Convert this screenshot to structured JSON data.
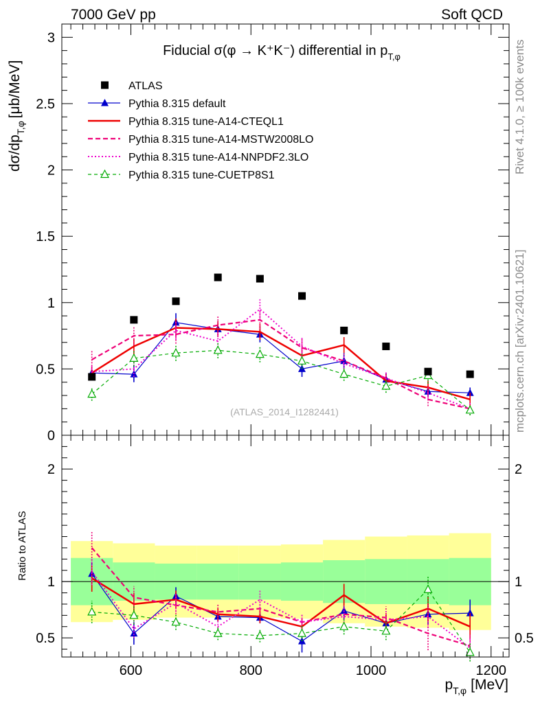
{
  "header": {
    "left": "7000 GeV pp",
    "right": "Soft QCD"
  },
  "side_labels": {
    "rivet": "Rivet 4.1.0, ≥ 100k events",
    "mcplots": "mcplots.cern.ch [arXiv:2401.10621]"
  },
  "chart_data": {
    "type": "line",
    "title_text": "Fiducial σ(φ → K⁺K⁻) differential in",
    "title_var": "p",
    "title_sub": "T,φ",
    "watermark": "(ATLAS_2014_I1282441)",
    "ylabel_main": "dσ/dp",
    "ylabel_sub": "T,φ",
    "ylabel_unit": "[μb/MeV]",
    "ylabel_ratio": "Ratio to ATLAS",
    "xlabel_main": "p",
    "xlabel_sub": "T,φ",
    "xlabel_unit": "[MeV]",
    "xlim": [
      485,
      1230
    ],
    "ylim_main": [
      0,
      3.1
    ],
    "ylim_ratio": [
      0.33,
      2.3
    ],
    "x_ticks": [
      600,
      800,
      1000,
      1200
    ],
    "y_ticks_main": [
      0,
      0.5,
      1,
      1.5,
      2,
      2.5,
      3
    ],
    "y_tick_labels_main": [
      "0",
      "0.5",
      "1",
      "1.5",
      "2",
      "2.5",
      "3"
    ],
    "y_ticks_ratio": [
      0.5,
      1,
      2
    ],
    "y_tick_labels_ratio": [
      "0.5",
      "1",
      "2"
    ],
    "bin_edges": [
      500,
      570,
      640,
      710,
      780,
      850,
      920,
      990,
      1060,
      1130,
      1200
    ],
    "x": [
      535,
      605,
      675,
      745,
      815,
      885,
      955,
      1025,
      1095,
      1165
    ],
    "data": {
      "name": "ATLAS",
      "values": [
        0.44,
        0.87,
        1.01,
        1.19,
        1.18,
        1.05,
        0.79,
        0.67,
        0.48,
        0.46
      ],
      "band_green": [
        0.21,
        0.17,
        0.16,
        0.16,
        0.16,
        0.17,
        0.19,
        0.2,
        0.2,
        0.21
      ],
      "band_yellow": [
        0.36,
        0.34,
        0.32,
        0.32,
        0.32,
        0.33,
        0.37,
        0.4,
        0.41,
        0.43
      ]
    },
    "series": [
      {
        "name": "Pythia 8.315 default",
        "color": "#0000cc",
        "values": [
          0.47,
          0.46,
          0.85,
          0.8,
          0.76,
          0.5,
          0.56,
          0.42,
          0.33,
          0.32
        ],
        "errors": [
          0.04,
          0.06,
          0.07,
          0.06,
          0.06,
          0.06,
          0.06,
          0.05,
          0.04,
          0.04
        ],
        "ratio": [
          1.07,
          0.54,
          0.87,
          0.69,
          0.68,
          0.47,
          0.74,
          0.63,
          0.71,
          0.72
        ],
        "ratio_errors": [
          0.1,
          0.1,
          0.08,
          0.05,
          0.05,
          0.1,
          0.08,
          0.07,
          0.09,
          0.12
        ]
      },
      {
        "name": "Pythia 8.315 tune-A14-CTEQL1",
        "color": "#ee0000",
        "values": [
          0.47,
          0.67,
          0.81,
          0.8,
          0.78,
          0.6,
          0.68,
          0.41,
          0.36,
          0.27
        ],
        "errors": [
          0.05,
          0.06,
          0.07,
          0.06,
          0.06,
          0.06,
          0.06,
          0.05,
          0.05,
          0.05
        ],
        "ratio": [
          1.03,
          0.8,
          0.84,
          0.71,
          0.69,
          0.6,
          0.88,
          0.63,
          0.76,
          0.6
        ],
        "ratio_errors": [
          0.12,
          0.1,
          0.08,
          0.06,
          0.06,
          0.07,
          0.1,
          0.09,
          0.11,
          0.12
        ]
      },
      {
        "name": "Pythia 8.315 tune-A14-MSTW2008LO",
        "color": "#ee0077",
        "values": [
          0.57,
          0.75,
          0.76,
          0.83,
          0.87,
          0.66,
          0.56,
          0.43,
          0.27,
          0.2
        ],
        "errors": [
          0.07,
          0.07,
          0.07,
          0.07,
          0.07,
          0.07,
          0.06,
          0.05,
          0.05,
          0.05
        ],
        "ratio": [
          1.3,
          0.86,
          0.79,
          0.73,
          0.76,
          0.64,
          0.71,
          0.68,
          0.54,
          0.43
        ],
        "ratio_errors": [
          0.14,
          0.1,
          0.08,
          0.07,
          0.07,
          0.07,
          0.08,
          0.1,
          0.15,
          0.11
        ]
      },
      {
        "name": "Pythia 8.315 tune-A14-NNPDF2.3LO",
        "color": "#ee00cc",
        "values": [
          0.48,
          0.5,
          0.79,
          0.71,
          0.95,
          0.67,
          0.54,
          0.43,
          0.32,
          0.2
        ],
        "errors": [
          0.05,
          0.06,
          0.07,
          0.07,
          0.08,
          0.07,
          0.06,
          0.05,
          0.05,
          0.05
        ],
        "ratio": [
          1.09,
          0.58,
          0.81,
          0.6,
          0.84,
          0.64,
          0.69,
          0.66,
          0.69,
          0.41
        ],
        "ratio_errors": [
          0.12,
          0.08,
          0.08,
          0.06,
          0.08,
          0.07,
          0.08,
          0.08,
          0.1,
          0.1
        ]
      },
      {
        "name": "Pythia 8.315 tune-CUETP8S1",
        "color": "#00aa00",
        "values": [
          0.31,
          0.58,
          0.62,
          0.64,
          0.61,
          0.56,
          0.46,
          0.37,
          0.45,
          0.19
        ],
        "errors": [
          0.05,
          0.06,
          0.06,
          0.06,
          0.06,
          0.06,
          0.05,
          0.05,
          0.06,
          0.04
        ],
        "ratio": [
          0.73,
          0.7,
          0.64,
          0.54,
          0.52,
          0.54,
          0.6,
          0.56,
          0.93,
          0.37
        ],
        "ratio_errors": [
          0.1,
          0.08,
          0.07,
          0.06,
          0.06,
          0.07,
          0.07,
          0.08,
          0.12,
          0.08
        ]
      }
    ]
  }
}
